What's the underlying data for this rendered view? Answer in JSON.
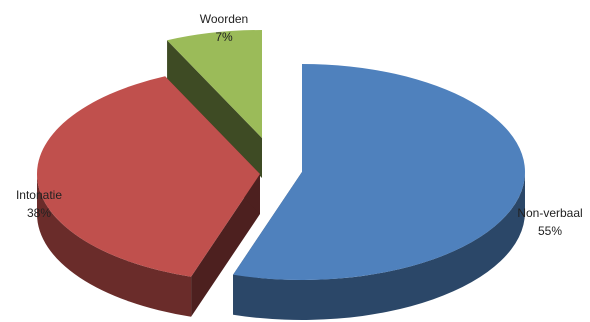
{
  "chart_data": {
    "type": "pie",
    "style": "3d-exploded",
    "legend": "none",
    "slices": [
      {
        "key": "nonverbaal",
        "label": "Non-verbaal",
        "value": 55,
        "value_label": "55%",
        "color": "#4f81bd"
      },
      {
        "key": "intonatie",
        "label": "Intonatie",
        "value": 38,
        "value_label": "38%",
        "color": "#c0504d"
      },
      {
        "key": "woorden",
        "label": "Woorden",
        "value": 7,
        "value_label": "7%",
        "color": "#9bbb59"
      }
    ]
  }
}
